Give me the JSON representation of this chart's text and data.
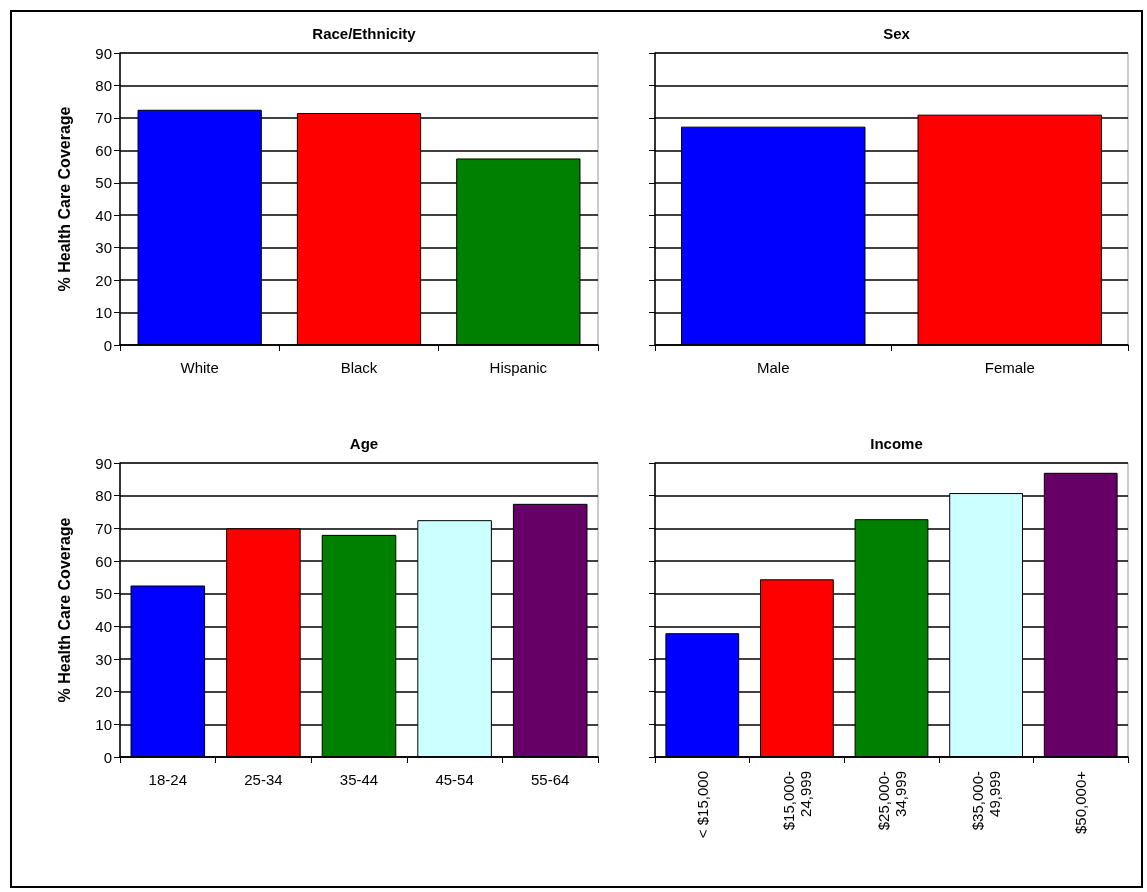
{
  "chart_data": [
    {
      "type": "bar",
      "title": "Race/Ethnicity",
      "ylabel": "% Health Care Coverage",
      "categories": [
        "White",
        "Black",
        "Hispanic"
      ],
      "values": [
        72.5,
        71.5,
        57.5
      ],
      "colors": [
        "#0000ff",
        "#ff0000",
        "#008000"
      ],
      "ylim": [
        0,
        90
      ],
      "yticks": [
        0,
        10,
        20,
        30,
        40,
        50,
        60,
        70,
        80,
        90
      ],
      "grid": "y"
    },
    {
      "type": "bar",
      "title": "Sex",
      "categories": [
        "Male",
        "Female"
      ],
      "values": [
        67.3,
        71
      ],
      "colors": [
        "#0000ff",
        "#ff0000"
      ],
      "ylim": [
        0,
        90
      ],
      "yticks": [
        0,
        10,
        20,
        30,
        40,
        50,
        60,
        70,
        80,
        90
      ],
      "grid": "y",
      "tick_labels": "x"
    },
    {
      "type": "bar",
      "title": "Age",
      "ylabel": "% Health Care Coverage",
      "categories": [
        "18-24",
        "25-34",
        "35-44",
        "45-54",
        "55-64"
      ],
      "values": [
        52.5,
        70,
        68,
        72.5,
        77.5
      ],
      "colors": [
        "#0000ff",
        "#ff0000",
        "#008000",
        "#ccffff",
        "#660066"
      ],
      "ylim": [
        0,
        90
      ],
      "yticks": [
        0,
        10,
        20,
        30,
        40,
        50,
        60,
        70,
        80,
        90
      ],
      "grid": "y"
    },
    {
      "type": "bar",
      "title": "Income",
      "categories": [
        "< $15,000",
        "$15,000-24,999",
        "$25,000-34,999",
        "$35,000-49,999",
        "$50,000+"
      ],
      "values": [
        37.9,
        54.4,
        72.8,
        80.8,
        87
      ],
      "colors": [
        "#0000ff",
        "#ff0000",
        "#008000",
        "#ccffff",
        "#660066"
      ],
      "ylim": [
        0,
        90
      ],
      "yticks": [
        0,
        10,
        20,
        30,
        40,
        50,
        60,
        70,
        80,
        90
      ],
      "grid": "y",
      "tick_labels": "x"
    }
  ]
}
